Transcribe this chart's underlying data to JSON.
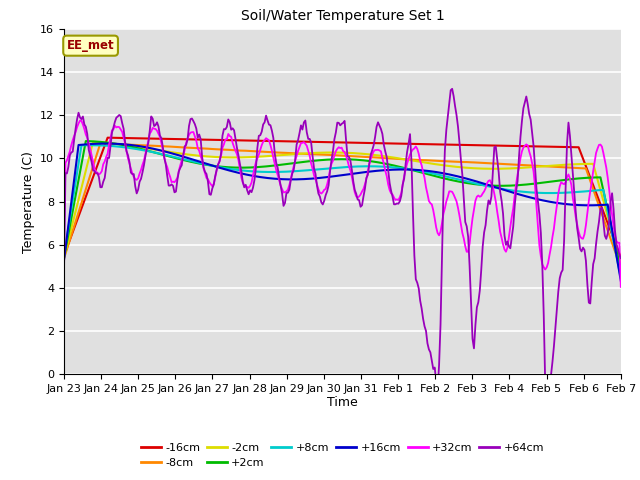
{
  "title": "Soil/Water Temperature Set 1",
  "xlabel": "Time",
  "ylabel": "Temperature (C)",
  "ylim": [
    0,
    16
  ],
  "yticks": [
    0,
    2,
    4,
    6,
    8,
    10,
    12,
    14,
    16
  ],
  "watermark": "EE_met",
  "bg_color": "#e0e0e0",
  "series_colors": {
    "-16cm": "#dd0000",
    "-8cm": "#ff8800",
    "-2cm": "#dddd00",
    "+2cm": "#00bb00",
    "+8cm": "#00cccc",
    "+16cm": "#0000cc",
    "+32cm": "#ff00ff",
    "+64cm": "#9900bb"
  },
  "xtick_labels": [
    "Jan 23",
    "Jan 24",
    "Jan 25",
    "Jan 26",
    "Jan 27",
    "Jan 28",
    "Jan 29",
    "Jan 30",
    "Jan 31",
    "Feb 1",
    "Feb 2",
    "Feb 3",
    "Feb 4",
    "Feb 5",
    "Feb 6",
    "Feb 7"
  ]
}
